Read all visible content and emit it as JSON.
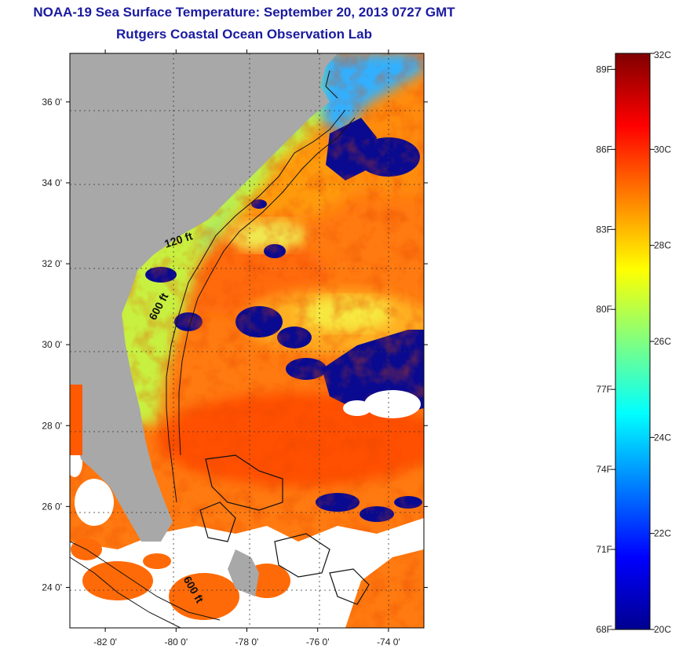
{
  "title": "NOAA-19 Sea Surface Temperature:  September 20, 2013 0727 GMT",
  "subtitle": "Rutgers Coastal Ocean Observation Lab",
  "map": {
    "lat_range": [
      23,
      37.2
    ],
    "lon_range": [
      -83,
      -73
    ],
    "lat_ticks": [
      {
        "value": 24,
        "label": "24 0'"
      },
      {
        "value": 26,
        "label": "26 0'"
      },
      {
        "value": 28,
        "label": "28 0'"
      },
      {
        "value": 30,
        "label": "30 0'"
      },
      {
        "value": 32,
        "label": "32 0'"
      },
      {
        "value": 34,
        "label": "34 0'"
      },
      {
        "value": 36,
        "label": "36 0'"
      }
    ],
    "lon_ticks": [
      {
        "value": -82,
        "label": "-82 0'"
      },
      {
        "value": -80,
        "label": "-80 0'"
      },
      {
        "value": -78,
        "label": "-78 0'"
      },
      {
        "value": -76,
        "label": "-76 0'"
      },
      {
        "value": -74,
        "label": "-74 0'"
      }
    ],
    "depth_contours": [
      {
        "label": "120 ft",
        "at": {
          "lon": -79.9,
          "lat": 32.5
        }
      },
      {
        "label": "600 ft",
        "at": {
          "lon": -80.4,
          "lat": 30.9
        }
      },
      {
        "label": "600 ft",
        "at": {
          "lon": -79.6,
          "lat": 23.9
        }
      }
    ],
    "colors": {
      "land": "#a8a8a8",
      "cloud_mask": "#ffffff"
    }
  },
  "colorbar": {
    "range_c": [
      20,
      32
    ],
    "celsius_ticks": [
      {
        "value": 20,
        "label": "20C"
      },
      {
        "value": 22,
        "label": "22C"
      },
      {
        "value": 24,
        "label": "24C"
      },
      {
        "value": 26,
        "label": "26C"
      },
      {
        "value": 28,
        "label": "28C"
      },
      {
        "value": 30,
        "label": "30C"
      },
      {
        "value": 32,
        "label": "32C"
      }
    ],
    "fahrenheit_ticks": [
      {
        "value": 20,
        "label": "68F"
      },
      {
        "value": 21.667,
        "label": "71F"
      },
      {
        "value": 23.333,
        "label": "74F"
      },
      {
        "value": 25,
        "label": "77F"
      },
      {
        "value": 26.667,
        "label": "80F"
      },
      {
        "value": 28.333,
        "label": "83F"
      },
      {
        "value": 30,
        "label": "86F"
      },
      {
        "value": 31.667,
        "label": "89F"
      }
    ],
    "palette": [
      "#00008f",
      "#0000ff",
      "#0080ff",
      "#00ffff",
      "#80ff80",
      "#ffff00",
      "#ff8000",
      "#ff0000",
      "#800000"
    ]
  }
}
